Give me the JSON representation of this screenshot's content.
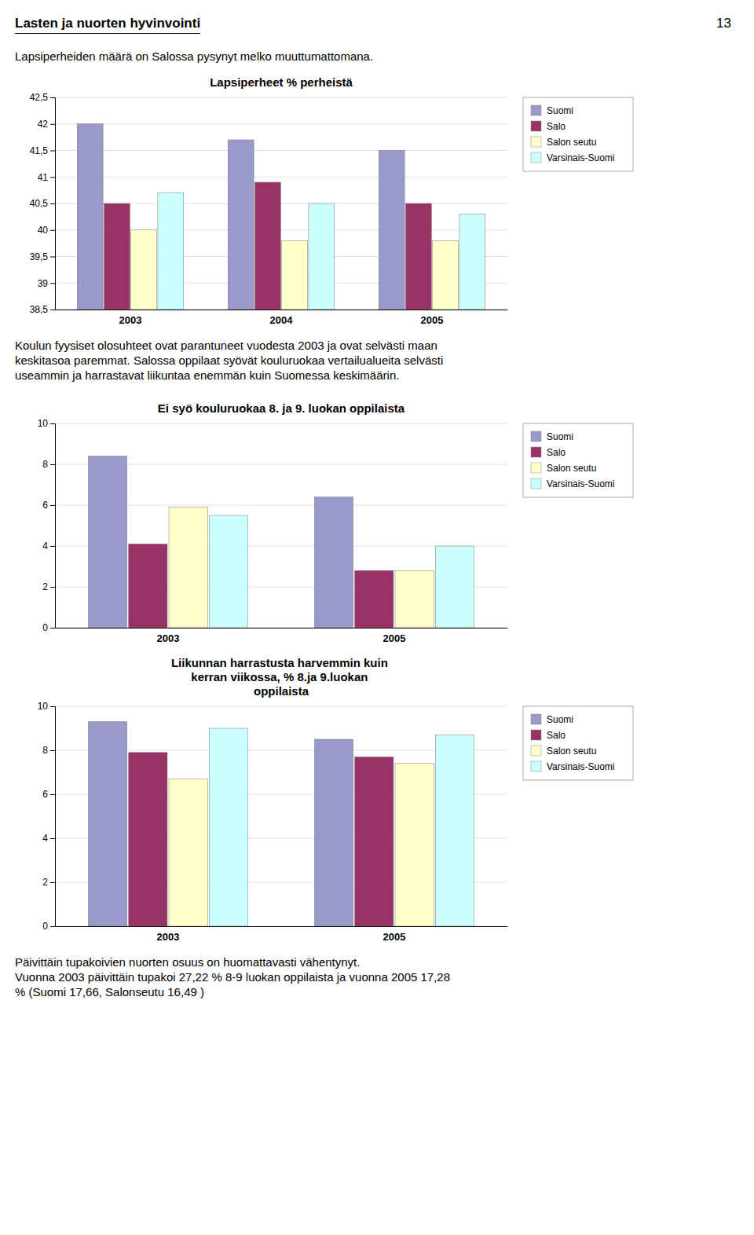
{
  "page_number": "13",
  "title": "Lasten ja nuorten hyvinvointi",
  "subtitle": "Lapsiperheiden määrä on Salossa pysynyt melko muuttumattomana.",
  "annotations": [
    "Koulun fyysiset olosuhteet ovat parantuneet vuodesta 2003 ja ovat selvästi maan\nkeskitasoa paremmat. Salossa oppilaat syövät kouluruokaa vertailualueita selvästi\nuseammin ja harrastavat liikuntaa enemmän kuin Suomessa keskimäärin.",
    "Päivittäin tupakoivien nuorten osuus on huomattavasti vähentynyt.\nVuonna 2003 päivittäin tupakoi 27,22 % 8-9 luokan oppilaista ja vuonna 2005 17,28\n% (Suomi 17,66, Salonseutu 16,49 )"
  ],
  "chart_data": [
    {
      "type": "bar",
      "title": "Lapsiperheet % perheistä",
      "categories": [
        "2003",
        "2004",
        "2005"
      ],
      "series": [
        {
          "name": "Suomi",
          "color": "#9999CC",
          "values": [
            42.0,
            41.7,
            41.5
          ]
        },
        {
          "name": "Salo",
          "color": "#993366",
          "values": [
            40.5,
            40.9,
            40.5
          ]
        },
        {
          "name": "Salon seutu",
          "color": "#FFFFCC",
          "values": [
            40.0,
            39.8,
            39.8
          ]
        },
        {
          "name": "Varsinais-Suomi",
          "color": "#CCFFFF",
          "values": [
            40.7,
            40.5,
            40.3
          ]
        }
      ],
      "ylim": [
        38.5,
        42.5
      ],
      "yticks": [
        {
          "value": 38.5,
          "label": "38,5"
        },
        39,
        {
          "value": 39.5,
          "label": "39,5"
        },
        40,
        {
          "value": 40.5,
          "label": "40,5"
        },
        41,
        {
          "value": 41.5,
          "label": "41,5"
        },
        42,
        {
          "value": 42.5,
          "label": "42,5"
        }
      ],
      "grid": true,
      "legend": "right"
    },
    {
      "type": "bar",
      "title": "Ei syö kouluruokaa 8. ja 9. luokan oppilaista",
      "categories": [
        "2003",
        "2005"
      ],
      "series": [
        {
          "name": "Suomi",
          "color": "#9999CC",
          "values": [
            8.4,
            6.4
          ]
        },
        {
          "name": "Salo",
          "color": "#993366",
          "values": [
            4.1,
            2.8
          ]
        },
        {
          "name": "Salon seutu",
          "color": "#FFFFCC",
          "values": [
            5.9,
            2.8
          ]
        },
        {
          "name": "Varsinais-Suomi",
          "color": "#CCFFFF",
          "values": [
            5.5,
            4.0
          ]
        }
      ],
      "ylim": [
        0,
        10
      ],
      "yticks": [
        0,
        2,
        4,
        6,
        8,
        10
      ],
      "grid": true,
      "legend": "right"
    },
    {
      "type": "bar",
      "title": "Liikunnan harrastusta harvemmin kuin\nkerran viikossa, % 8.ja 9.luokan\noppilaista",
      "categories": [
        "2003",
        "2005"
      ],
      "series": [
        {
          "name": "Suomi",
          "color": "#9999CC",
          "values": [
            9.3,
            8.5
          ]
        },
        {
          "name": "Salo",
          "color": "#993366",
          "values": [
            7.9,
            7.7
          ]
        },
        {
          "name": "Salon seutu",
          "color": "#FFFFCC",
          "values": [
            6.7,
            7.4
          ]
        },
        {
          "name": "Varsinais-Suomi",
          "color": "#CCFFFF",
          "values": [
            9.0,
            8.7
          ]
        }
      ],
      "ylim": [
        0,
        10
      ],
      "yticks": [
        0,
        2,
        4,
        6,
        8,
        10
      ],
      "grid": true,
      "legend": "right"
    }
  ]
}
